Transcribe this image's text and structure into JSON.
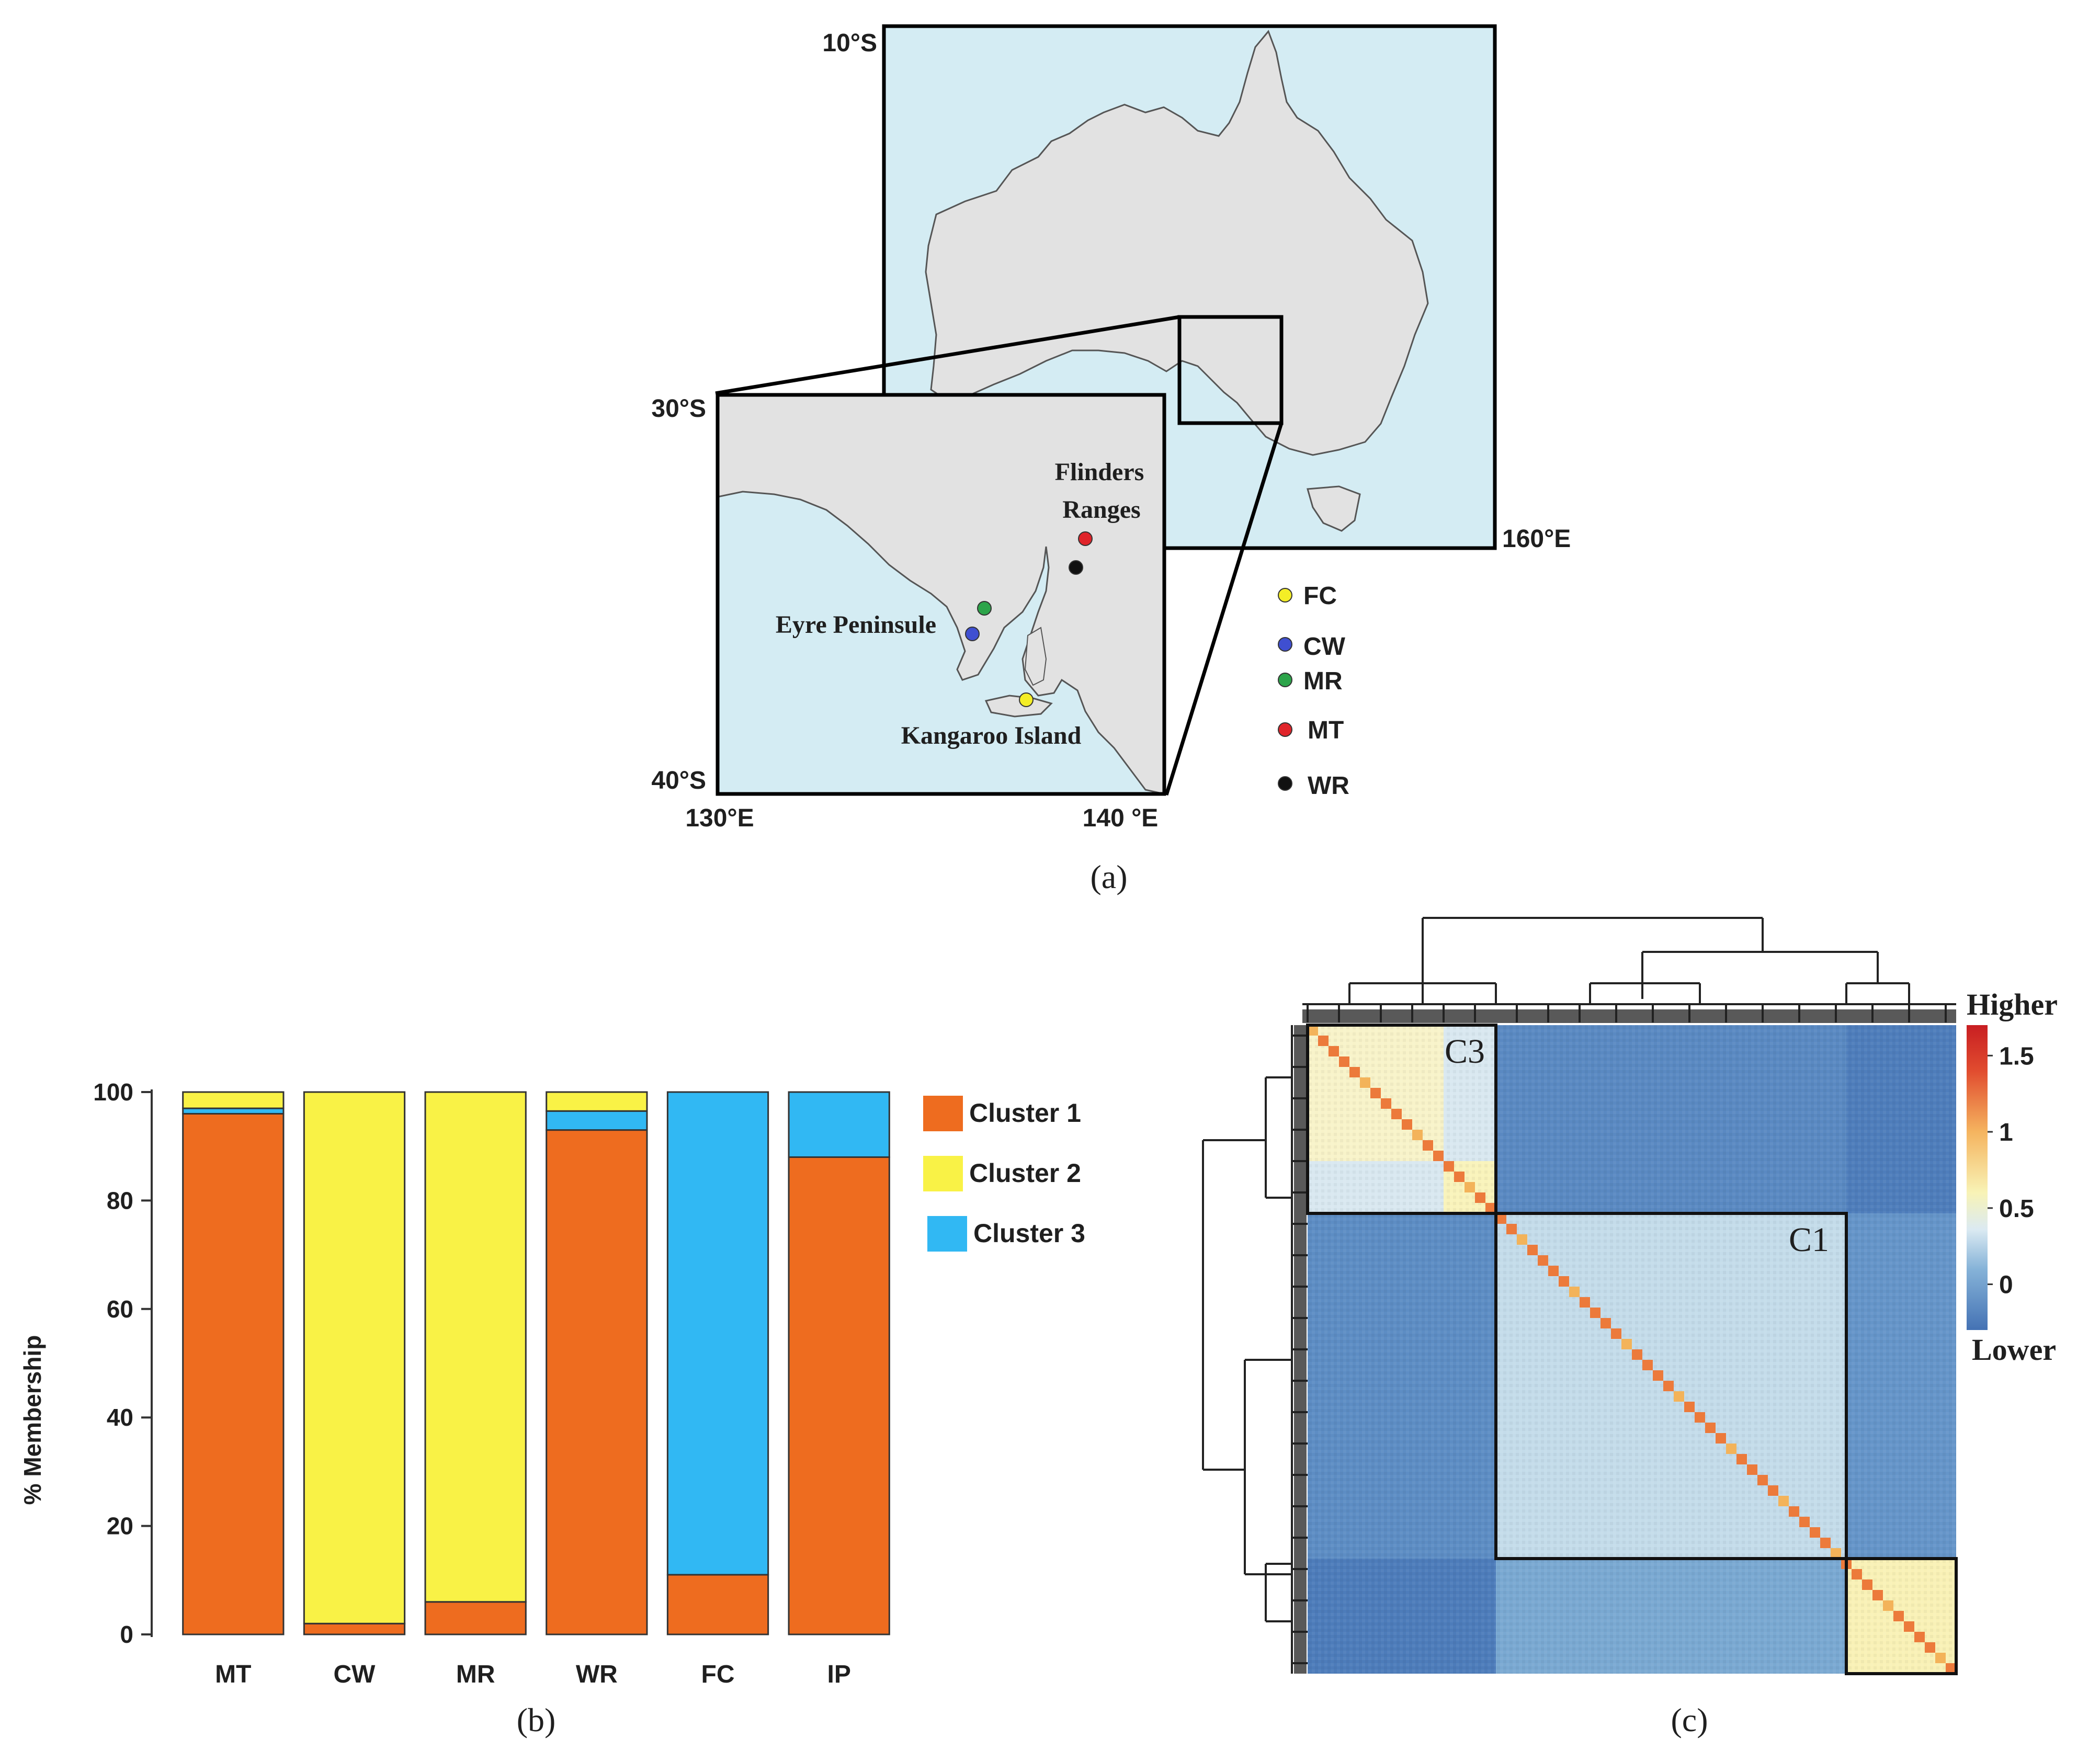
{
  "panel_a": {
    "caption": "(a)",
    "main_map": {
      "lat_top_label": "10°S",
      "lon_right_label": "160°E"
    },
    "inset_map": {
      "lat_top_label": "30°S",
      "lat_bottom_label": "40°S",
      "lon_left_label": "130°E",
      "lon_right_label": "140 °E",
      "place_labels": [
        "Flinders",
        "Ranges",
        "Eyre Peninsule",
        "Kangaroo Island"
      ],
      "sites": [
        {
          "code": "FC",
          "color": "#f4ee26"
        },
        {
          "code": "CW",
          "color": "#3f4fd1"
        },
        {
          "code": "MR",
          "color": "#2ca44a"
        },
        {
          "code": "MT",
          "color": "#e0242a"
        },
        {
          "code": "WR",
          "color": "#111111"
        }
      ]
    },
    "colors": {
      "sea": "#d4ecf3",
      "land": "#e2e2e2"
    }
  },
  "panel_b": {
    "caption": "(b)",
    "chart_data": {
      "type": "bar",
      "stacked": true,
      "categories": [
        "MT",
        "CW",
        "MR",
        "WR",
        "FC",
        "IP"
      ],
      "series": [
        {
          "name": "Cluster 1",
          "color": "#ee6c1f",
          "values": [
            96,
            2,
            6,
            93,
            11,
            88
          ]
        },
        {
          "name": "Cluster 3",
          "color": "#31b8f3",
          "values": [
            1,
            0,
            0,
            3.5,
            89,
            12
          ]
        },
        {
          "name": "Cluster 2",
          "color": "#f9f246",
          "values": [
            3,
            98,
            94,
            3.5,
            0,
            0
          ]
        }
      ],
      "legend_order": [
        "Cluster 1",
        "Cluster 2",
        "Cluster 3"
      ],
      "ylabel": "% Membership",
      "ylim": [
        0,
        100
      ],
      "yticks": [
        0,
        20,
        40,
        60,
        80,
        100
      ],
      "legend_position": "right"
    }
  },
  "panel_c": {
    "caption": "(c)",
    "chart_data": {
      "type": "heatmap",
      "clusters": [
        "C3",
        "C1"
      ],
      "colorbar": {
        "ticks": [
          0,
          0.5,
          1,
          1.5
        ],
        "top_label": "Higher",
        "bottom_label": "Lower",
        "colors": [
          "#4472b4",
          "#86b3d8",
          "#dbeaf2",
          "#f8f3b6",
          "#f5b45f",
          "#e14c2f",
          "#c81e22"
        ]
      }
    }
  }
}
